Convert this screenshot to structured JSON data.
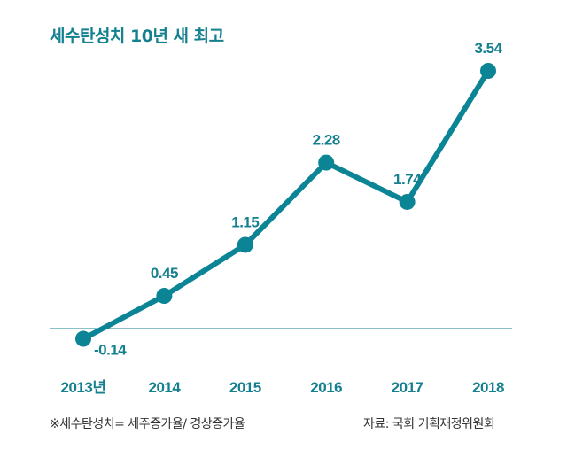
{
  "title": "세수탄성치 10년 새 최고",
  "footnote": "※세수탄성치= 세주증가율/ 경상증가율",
  "source": "자료: 국회 기획재정위원회",
  "colors": {
    "accent": "#15808f",
    "line": "#0b8595",
    "text": "#333333"
  },
  "chart_data": {
    "type": "line",
    "title": "세수탄성치 10년 새 최고",
    "categories": [
      "2013년",
      "2014",
      "2015",
      "2016",
      "2017",
      "2018"
    ],
    "series": [
      {
        "name": "세수탄성치",
        "values": [
          -0.14,
          0.45,
          1.15,
          2.28,
          1.74,
          3.54
        ]
      }
    ],
    "data_labels": [
      "-0.14",
      "0.45",
      "1.15",
      "2.28",
      "1.74",
      "3.54"
    ],
    "xlabel": "",
    "ylabel": "",
    "ylim": [
      -0.2,
      3.6
    ],
    "baseline": 0,
    "grid": false,
    "legend": "none"
  }
}
